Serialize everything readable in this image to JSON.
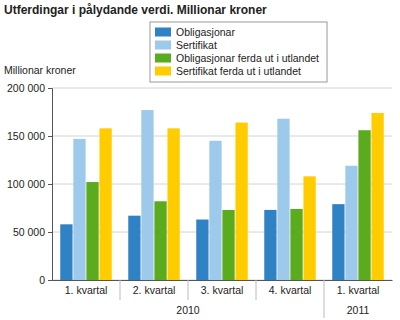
{
  "chart_data": {
    "type": "bar",
    "title": "Utferdingar i pålydande verdi. Millionar kroner",
    "y_label": "Millionar kroner",
    "categories": [
      "1. kvartal",
      "2. kvartal",
      "3. kvartal",
      "4. kvartal",
      "1. kvartal"
    ],
    "category_groups": [
      {
        "label": "2010",
        "count": 4
      },
      {
        "label": "2011",
        "count": 1
      }
    ],
    "series": [
      {
        "name": "Obligasjonar",
        "color": "#2f82c4",
        "values": [
          58000,
          67000,
          63000,
          73000,
          79000
        ]
      },
      {
        "name": "Sertifikat",
        "color": "#9dc9ea",
        "values": [
          147000,
          177000,
          145000,
          168000,
          119000
        ]
      },
      {
        "name": "Obligasjonar ferda ut i utlandet",
        "color": "#5aab1e",
        "values": [
          102000,
          82000,
          73000,
          74000,
          156000
        ]
      },
      {
        "name": "Sertifikat ferda ut i utlandet",
        "color": "#ffcc00",
        "values": [
          158000,
          158000,
          164000,
          108000,
          174000
        ]
      }
    ],
    "ylim": [
      0,
      200000
    ],
    "yticks": [
      0,
      {
        "value": 50000,
        "label": "50 000"
      },
      {
        "value": 100000,
        "label": "100 000"
      },
      {
        "value": 150000,
        "label": "150 000"
      },
      {
        "value": 200000,
        "label": "200 000"
      }
    ],
    "grid": true,
    "legend": "top"
  }
}
